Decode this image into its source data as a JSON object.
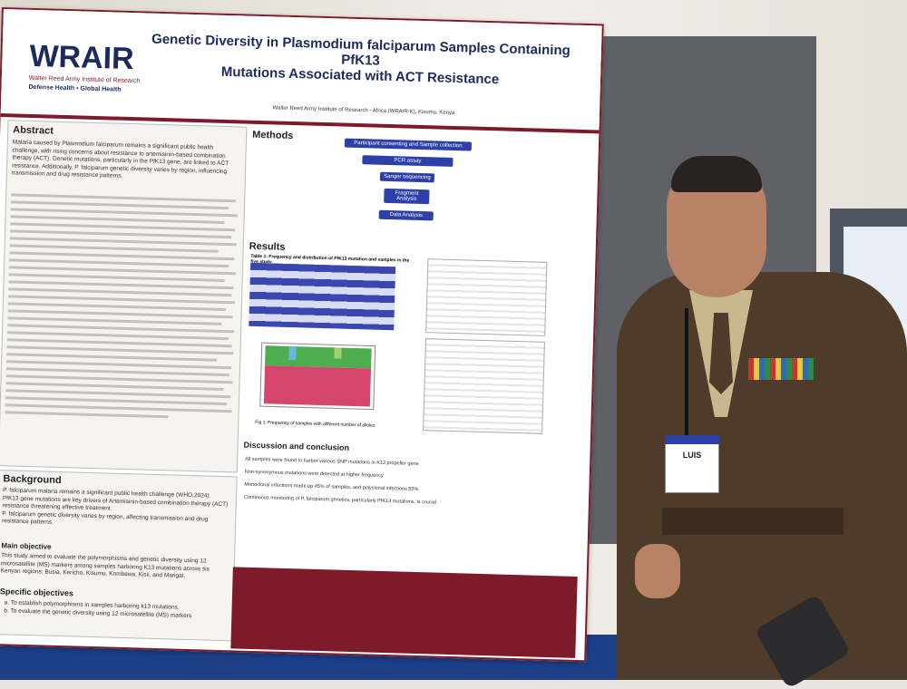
{
  "poster": {
    "logo": {
      "mark": "WRAIR",
      "name": "Walter Reed Army Institute of Research",
      "tagline": "Defense Health • Global Health"
    },
    "title": [
      "Genetic Diversity in Plasmodium falciparum Samples Containing PfK13",
      "Mutations Associated with ACT Resistance"
    ],
    "affiliation": "Walter Reed Army Institute of Research - Africa (WRAIR-K), Kisumu, Kenya",
    "sections": {
      "abstract": {
        "heading": "Abstract",
        "text": "Malaria caused by Plasmodium falciparum remains a significant public health challenge, with rising concerns about resistance to artemisinin-based combination therapy (ACT). Genetic mutations, particularly in the PfK13 gene, are linked to ACT resistance. Additionally, P. falciparum genetic diversity varies by region, influencing transmission and drug resistance patterns."
      },
      "methods": {
        "heading": "Methods",
        "flow": [
          "Participant consenting and Sample collection",
          "PCR assay",
          "Sanger sequencing",
          "Fragment Analysis",
          "Data Analysis"
        ]
      },
      "results": {
        "heading": "Results",
        "table_title": "Table 1: Frequency and distribution of PfK13 mutation and samples in the five study",
        "figure_caption": "Fig 1: Frequency of samples with different number of alleles"
      },
      "background": {
        "heading": "Background",
        "bullets": [
          "P. falciparum malaria remains a significant public health challenge (WHO,2024).",
          "PfK13 gene mutations are key drivers of Artemisinin-based combination therapy (ACT) resistance threatening effective treatment.",
          "P. falciparum genetic diversity varies by region, affecting transmission and drug resistance patterns."
        ]
      },
      "main_objective": {
        "heading": "Main objective",
        "text": "This study aimed to evaluate the polymorphisms and genetic diversity using 12 microsatellite (MS) markers among samples harboring K13 mutations across six Kenyan regions: Busia, Kericho, Kisumu, Kombewa, Kisii, and Marigat."
      },
      "specific_objectives": {
        "heading": "Specific objectives",
        "items": [
          "a. To establish polymorphisms in samples harboring k13 mutations.",
          "b. To evaluate the genetic diversity using 12 microsatellite (MS) markers"
        ]
      },
      "discussion": {
        "heading": "Discussion and conclusion",
        "items": [
          "All samples were found to harbor various SNP mutations in K13 propeller gene",
          "Non-synonymous mutations were detected at higher frequency",
          "Monoclonal infections made up 45% of samples, and polyclonal infections 55%.",
          "Continuous monitoring of P. falciparum genetics, particularly PfK13 mutations, is crucial"
        ]
      }
    }
  },
  "badge": {
    "name": "LUIS"
  }
}
